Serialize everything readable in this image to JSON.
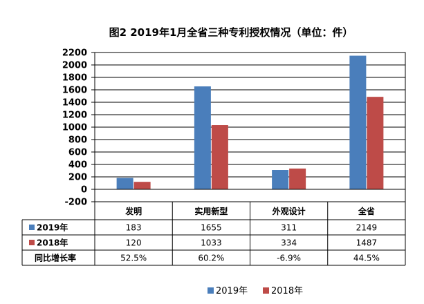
{
  "chart_data": {
    "type": "bar",
    "title": "图2  2019年1月全省三种专利授权情况（单位：件）",
    "categories": [
      "发明",
      "实用新型",
      "外观设计",
      "全省"
    ],
    "series": [
      {
        "name": "2019年",
        "color": "#4a7ebb",
        "values": [
          183,
          1655,
          311,
          2149
        ]
      },
      {
        "name": "2018年",
        "color": "#be4b48",
        "values": [
          120,
          1033,
          334,
          1487
        ]
      }
    ],
    "ylim": [
      -200,
      2200
    ],
    "y_ticks": [
      -200,
      0,
      200,
      400,
      600,
      800,
      1000,
      1200,
      1400,
      1600,
      1800,
      2000,
      2200
    ],
    "y_tick_labels": [
      "-200",
      "0",
      "200",
      "400",
      "600",
      "800",
      "1000",
      "1200",
      "1400",
      "1600",
      "1800",
      "2000",
      "2200"
    ],
    "grid": true,
    "legend_position": "bottom",
    "data_table": {
      "rows": [
        {
          "label": "2019年",
          "marker_color": "#4a7ebb",
          "cells": [
            "183",
            "1655",
            "311",
            "2149"
          ]
        },
        {
          "label": "2018年",
          "marker_color": "#be4b48",
          "cells": [
            "120",
            "1033",
            "334",
            "1487"
          ]
        },
        {
          "label": "同比增长率",
          "marker_color": "",
          "cells": [
            "52.5%",
            "60.2%",
            "-6.9%",
            "44.5%"
          ]
        }
      ]
    }
  }
}
